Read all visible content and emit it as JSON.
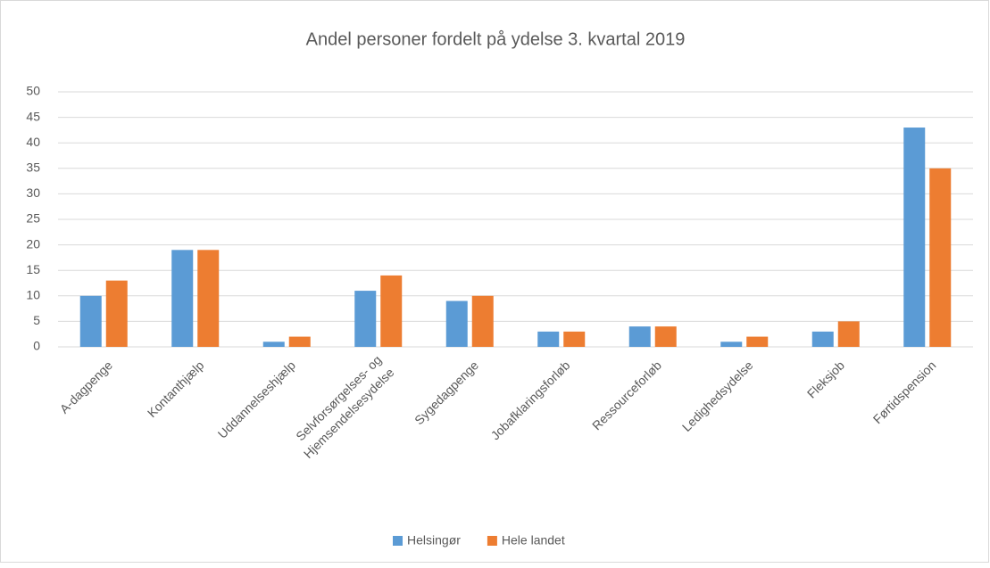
{
  "chart_data": {
    "type": "bar",
    "title": "Andel personer fordelt på ydelse 3. kvartal 2019",
    "categories": [
      "A-dagpenge",
      "Kontanthjælp",
      "Uddannelseshjælp",
      "Selvforsørgelses- og Hjemsendelsesydelse",
      "Sygedagpenge",
      "Jobafklaringsforløb",
      "Ressourceforløb",
      "Ledighedsydelse",
      "Fleksjob",
      "Førtidspension"
    ],
    "series": [
      {
        "name": "Helsingør",
        "color": "#5b9bd5",
        "values": [
          10,
          19,
          1,
          11,
          9,
          3,
          4,
          1,
          3,
          43
        ]
      },
      {
        "name": "Hele landet",
        "color": "#ed7d31",
        "values": [
          13,
          19,
          2,
          14,
          10,
          3,
          4,
          2,
          5,
          35
        ]
      }
    ],
    "ylim": [
      0,
      50
    ],
    "yticks": [
      0,
      5,
      10,
      15,
      20,
      25,
      30,
      35,
      40,
      45,
      50
    ],
    "grid": true,
    "legend": "bottom"
  }
}
